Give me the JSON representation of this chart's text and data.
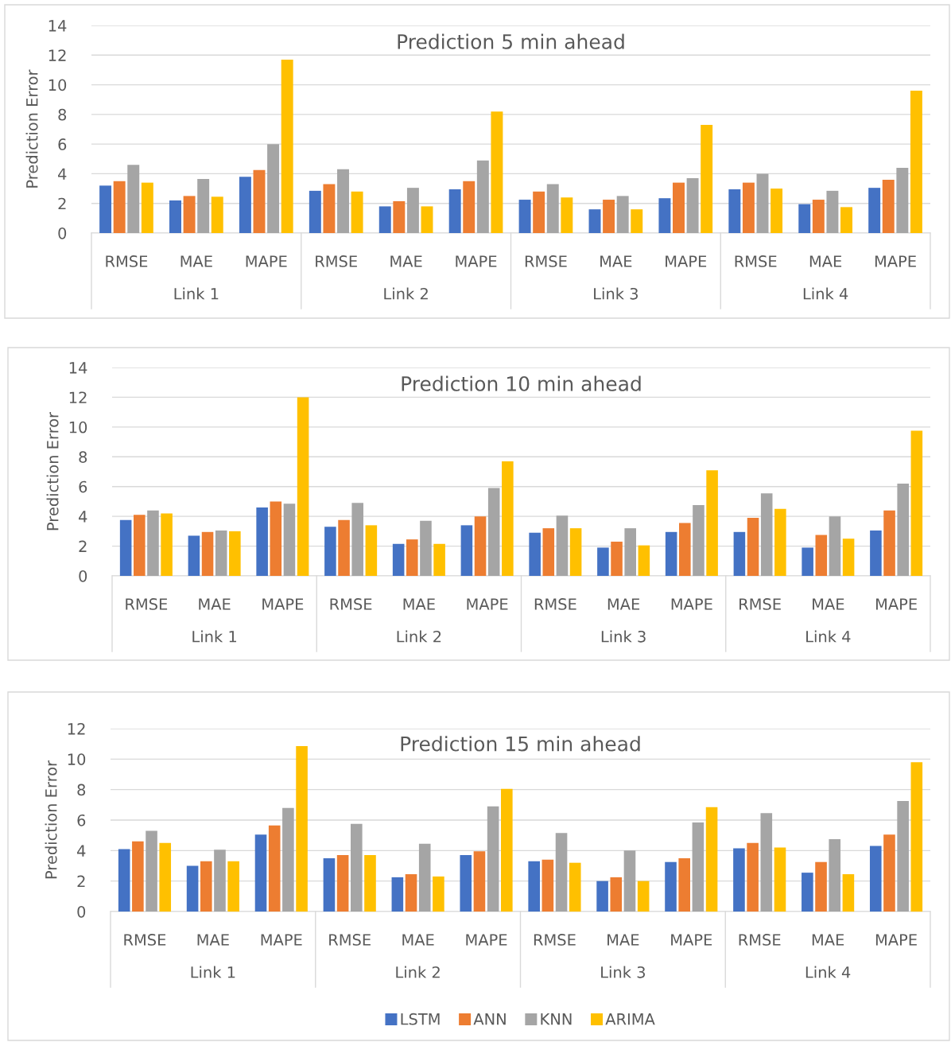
{
  "chart_data": [
    {
      "type": "bar",
      "title": "Prediction 5 min ahead",
      "ylabel": "Prediction Error",
      "categories": [
        "RMSE",
        "MAE",
        "MAPE",
        "RMSE",
        "MAE",
        "MAPE",
        "RMSE",
        "MAE",
        "MAPE",
        "RMSE",
        "MAE",
        "MAPE"
      ],
      "annotations": [
        "Link 1",
        "Link 2",
        "Link 3",
        "Link 4"
      ],
      "series": [
        {
          "color": "#4472c4",
          "values": [
            3.2,
            2.2,
            3.8,
            2.85,
            1.8,
            2.95,
            2.25,
            1.6,
            2.35,
            2.95,
            1.95,
            3.05
          ]
        },
        {
          "color": "#ed7d31",
          "values": [
            3.5,
            2.5,
            4.25,
            3.3,
            2.15,
            3.5,
            2.8,
            2.25,
            3.4,
            3.4,
            2.25,
            3.6
          ]
        },
        {
          "color": "#a5a5a5",
          "values": [
            4.6,
            3.65,
            6.0,
            4.3,
            3.05,
            4.9,
            3.3,
            2.5,
            3.7,
            4.0,
            2.85,
            4.4
          ]
        },
        {
          "color": "#ffc000",
          "values": [
            3.4,
            2.45,
            11.7,
            2.8,
            1.8,
            8.2,
            2.4,
            1.6,
            7.3,
            3.0,
            1.75,
            9.6
          ]
        }
      ],
      "ylim": [
        0,
        14
      ],
      "yticks": [
        0,
        2,
        4,
        6,
        8,
        10,
        12,
        14
      ],
      "grid": "y",
      "legend": false
    },
    {
      "type": "bar",
      "title": "Prediction 10 min ahead",
      "ylabel": "Prediction Error",
      "categories": [
        "RMSE",
        "MAE",
        "MAPE",
        "RMSE",
        "MAE",
        "MAPE",
        "RMSE",
        "MAE",
        "MAPE",
        "RMSE",
        "MAE",
        "MAPE"
      ],
      "annotations": [
        "Link 1",
        "Link 2",
        "Link 3",
        "Link 4"
      ],
      "series": [
        {
          "color": "#4472c4",
          "values": [
            3.75,
            2.7,
            4.6,
            3.3,
            2.15,
            3.4,
            2.9,
            1.9,
            2.95,
            2.95,
            1.9,
            3.05
          ]
        },
        {
          "color": "#ed7d31",
          "values": [
            4.1,
            2.95,
            5.0,
            3.75,
            2.45,
            4.0,
            3.2,
            2.3,
            3.55,
            3.9,
            2.75,
            4.4
          ]
        },
        {
          "color": "#a5a5a5",
          "values": [
            4.4,
            3.05,
            4.85,
            4.9,
            3.7,
            5.9,
            4.05,
            3.2,
            4.75,
            5.55,
            4.0,
            6.2
          ]
        },
        {
          "color": "#ffc000",
          "values": [
            4.2,
            3.0,
            12.0,
            3.4,
            2.15,
            7.7,
            3.2,
            2.05,
            7.1,
            4.5,
            2.5,
            9.75
          ]
        }
      ],
      "ylim": [
        0,
        14
      ],
      "yticks": [
        0,
        2,
        4,
        6,
        8,
        10,
        12,
        14
      ],
      "grid": "y",
      "legend": false
    },
    {
      "type": "bar",
      "title": "Prediction 15 min ahead",
      "ylabel": "Prediction Error",
      "categories": [
        "RMSE",
        "MAE",
        "MAPE",
        "RMSE",
        "MAE",
        "MAPE",
        "RMSE",
        "MAE",
        "MAPE",
        "RMSE",
        "MAE",
        "MAPE"
      ],
      "annotations": [
        "Link 1",
        "Link 2",
        "Link 3",
        "Link 4"
      ],
      "series": [
        {
          "name": "LSTM",
          "color": "#4472c4",
          "values": [
            4.1,
            3.0,
            5.05,
            3.5,
            2.25,
            3.7,
            3.3,
            2.0,
            3.25,
            4.15,
            2.55,
            4.3
          ]
        },
        {
          "name": "ANN",
          "color": "#ed7d31",
          "values": [
            4.6,
            3.3,
            5.65,
            3.7,
            2.45,
            3.95,
            3.4,
            2.25,
            3.5,
            4.5,
            3.25,
            5.05
          ]
        },
        {
          "name": "KNN",
          "color": "#a5a5a5",
          "values": [
            5.3,
            4.05,
            6.8,
            5.75,
            4.45,
            6.9,
            5.15,
            4.0,
            5.85,
            6.45,
            4.75,
            7.25
          ]
        },
        {
          "name": "ARIMA",
          "color": "#ffc000",
          "values": [
            4.5,
            3.3,
            10.85,
            3.7,
            2.3,
            8.05,
            3.2,
            2.0,
            6.85,
            4.2,
            2.45,
            9.8
          ]
        }
      ],
      "ylim": [
        0,
        12
      ],
      "yticks": [
        0,
        2,
        4,
        6,
        8,
        10,
        12
      ],
      "grid": "y",
      "legend": "bottom"
    }
  ]
}
